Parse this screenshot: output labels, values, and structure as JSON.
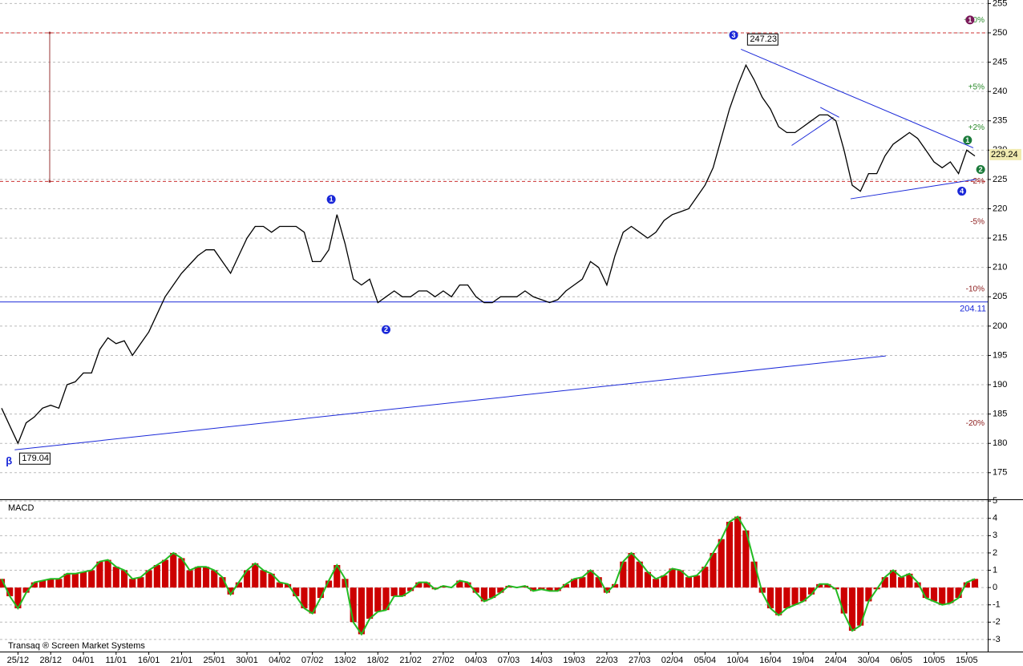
{
  "chart_data": [
    {
      "type": "line",
      "color": "#000000",
      "categories": [
        null,
        null,
        "25/12",
        null,
        null,
        null,
        "28/12",
        null,
        null,
        null,
        "04/01",
        null,
        null,
        null,
        "11/01",
        null,
        null,
        null,
        "16/01",
        null,
        null,
        null,
        "21/01",
        null,
        null,
        null,
        "25/01",
        null,
        null,
        null,
        "30/01",
        null,
        null,
        null,
        "04/02",
        null,
        null,
        null,
        "07/02",
        null,
        null,
        null,
        "13/02",
        null,
        null,
        null,
        "18/02",
        null,
        null,
        null,
        "21/02",
        null,
        null,
        null,
        "27/02",
        null,
        null,
        null,
        "04/03",
        null,
        null,
        null,
        "07/03",
        null,
        null,
        null,
        "14/03",
        null,
        null,
        null,
        "19/03",
        null,
        null,
        null,
        "22/03",
        null,
        null,
        null,
        "27/03",
        null,
        null,
        null,
        "02/04",
        null,
        null,
        null,
        "05/04",
        null,
        null,
        null,
        "10/04",
        null,
        null,
        null,
        "16/04",
        null,
        null,
        null,
        "19/04",
        null,
        null,
        null,
        "24/04",
        null,
        null,
        null,
        "30/04",
        null,
        null,
        null,
        "06/05",
        null,
        null,
        null,
        "10/05",
        null,
        null,
        null,
        "15/05",
        null
      ],
      "values": [
        186,
        183,
        180,
        183.5,
        184.5,
        186,
        186.5,
        186,
        190,
        190.5,
        192,
        192,
        196,
        198,
        197,
        197.5,
        195,
        197,
        199,
        202,
        205,
        207,
        209,
        210.5,
        212,
        213,
        213,
        211,
        209,
        212,
        215,
        217,
        217,
        216,
        217,
        217,
        217,
        216,
        211,
        211,
        213,
        219,
        214,
        208,
        207,
        208,
        204,
        205,
        206,
        205,
        205,
        206,
        206,
        205,
        206,
        205,
        207,
        207,
        205,
        204,
        204,
        205,
        205,
        205,
        206,
        205,
        204.5,
        204,
        204.5,
        206,
        207,
        208,
        211,
        210,
        207,
        212,
        216,
        217,
        216,
        215,
        216,
        218,
        219,
        219.5,
        220,
        222,
        224,
        227,
        232,
        237,
        241,
        244.5,
        242,
        239,
        237,
        234,
        233,
        233,
        234,
        235,
        236,
        236,
        235,
        230,
        224,
        223,
        226,
        226,
        229,
        231,
        232,
        233,
        232,
        230,
        228,
        227,
        228,
        226,
        230,
        229
      ],
      "ylim": [
        170.6,
        255.6
      ],
      "yticks": [
        175,
        180,
        185,
        190,
        195,
        200,
        205,
        210,
        215,
        220,
        225,
        230,
        235,
        240,
        245,
        250,
        255
      ],
      "grid": true,
      "last_price": 229.24,
      "support_level": 204.11,
      "range_lines": [
        250,
        224.66
      ],
      "percent_levels": [
        {
          "value": 10,
          "label": "+10%"
        },
        {
          "value": 5,
          "label": "+5%"
        },
        {
          "value": 2,
          "label": "+2%"
        },
        {
          "value": -2,
          "label": "-2%"
        },
        {
          "value": -5,
          "label": "-5%"
        },
        {
          "value": -10,
          "label": "-10%"
        },
        {
          "value": -20,
          "label": "-20%"
        }
      ],
      "price_labels": [
        {
          "x": 91,
          "value": 247.23
        },
        {
          "x": 2,
          "value": 179.04
        }
      ],
      "trendlines": [
        {
          "x": [
            1.6,
            108.1
          ],
          "y": [
            178.9,
            194.9
          ]
        },
        {
          "x": [
            90.4,
            118.8
          ],
          "y": [
            247.2,
            230.4
          ]
        },
        {
          "x": [
            103.8,
            119.1
          ],
          "y": [
            221.7,
            225
          ]
        },
        {
          "x": [
            96.6,
            101.7
          ],
          "y": [
            230.8,
            235.6
          ]
        },
        {
          "x": [
            100.1,
            102.4
          ],
          "y": [
            237.3,
            235.6
          ]
        }
      ],
      "wave_labels": [
        {
          "label": "1",
          "x": 40.3,
          "y": 221.6,
          "color": "#1a28d8",
          "marker": "circle"
        },
        {
          "label": "2",
          "x": 47,
          "y": 199.4,
          "color": "#1a28d8",
          "marker": "circle"
        },
        {
          "label": "3",
          "x": 89.5,
          "y": 249.6,
          "color": "#1a28d8",
          "marker": "circle"
        },
        {
          "label": "4",
          "x": 117.4,
          "y": 223,
          "color": "#1a28d8",
          "marker": "circle"
        },
        {
          "label": "1",
          "x": 118.1,
          "y": 231.7,
          "color": "#1a7a3a",
          "marker": "circle"
        },
        {
          "label": "2",
          "x": 119.7,
          "y": 226.7,
          "color": "#1a7a3a",
          "marker": "circle"
        },
        {
          "label": "1",
          "x": 118.4,
          "y": 252.2,
          "color": "#7a1a5a",
          "marker": "circle"
        },
        {
          "label": "β",
          "x": 0.9,
          "y": 176.9,
          "color": "#1a28d8",
          "marker": "text"
        }
      ]
    },
    {
      "type": "bar",
      "title": "MACD",
      "color": "#cc0000",
      "signal_color": "#22bb22",
      "values": [
        0.5,
        -0.5,
        -1.2,
        -0.3,
        0.3,
        0.4,
        0.5,
        0.5,
        0.8,
        0.8,
        0.9,
        1.0,
        1.5,
        1.6,
        1.2,
        1.0,
        0.5,
        0.6,
        1.0,
        1.3,
        1.6,
        2.0,
        1.7,
        1.0,
        1.2,
        1.2,
        1.0,
        0.6,
        -0.4,
        0.3,
        1.0,
        1.4,
        1.0,
        0.8,
        0.3,
        0.2,
        -0.5,
        -1.2,
        -1.5,
        -0.6,
        0.4,
        1.3,
        0.5,
        -2.0,
        -2.7,
        -1.8,
        -1.4,
        -1.3,
        -0.5,
        -0.5,
        -0.2,
        0.3,
        0.3,
        -0.1,
        0.1,
        0.0,
        0.4,
        0.3,
        -0.3,
        -0.8,
        -0.6,
        -0.3,
        0.1,
        0.0,
        0.1,
        -0.2,
        -0.1,
        -0.2,
        -0.2,
        0.2,
        0.5,
        0.6,
        1.0,
        0.6,
        -0.3,
        0.2,
        1.5,
        2.0,
        1.5,
        0.9,
        0.5,
        0.7,
        1.1,
        1.0,
        0.6,
        0.7,
        1.2,
        2.0,
        2.8,
        3.8,
        4.1,
        3.3,
        1.5,
        -0.3,
        -1.2,
        -1.6,
        -1.2,
        -1.0,
        -0.8,
        -0.4,
        0.2,
        0.2,
        -0.1,
        -1.5,
        -2.5,
        -2.2,
        -0.8,
        -0.1,
        0.6,
        1.0,
        0.6,
        0.8,
        0.3,
        -0.6,
        -0.8,
        -1.0,
        -0.9,
        -0.6,
        0.3,
        0.5
      ],
      "ylim": [
        -3.7,
        5.1
      ],
      "yticks": [
        5,
        4,
        3,
        2,
        1,
        0,
        -1,
        -2,
        -3
      ],
      "grid": true
    }
  ],
  "footer": "Transaq ® Screen Market Systems"
}
